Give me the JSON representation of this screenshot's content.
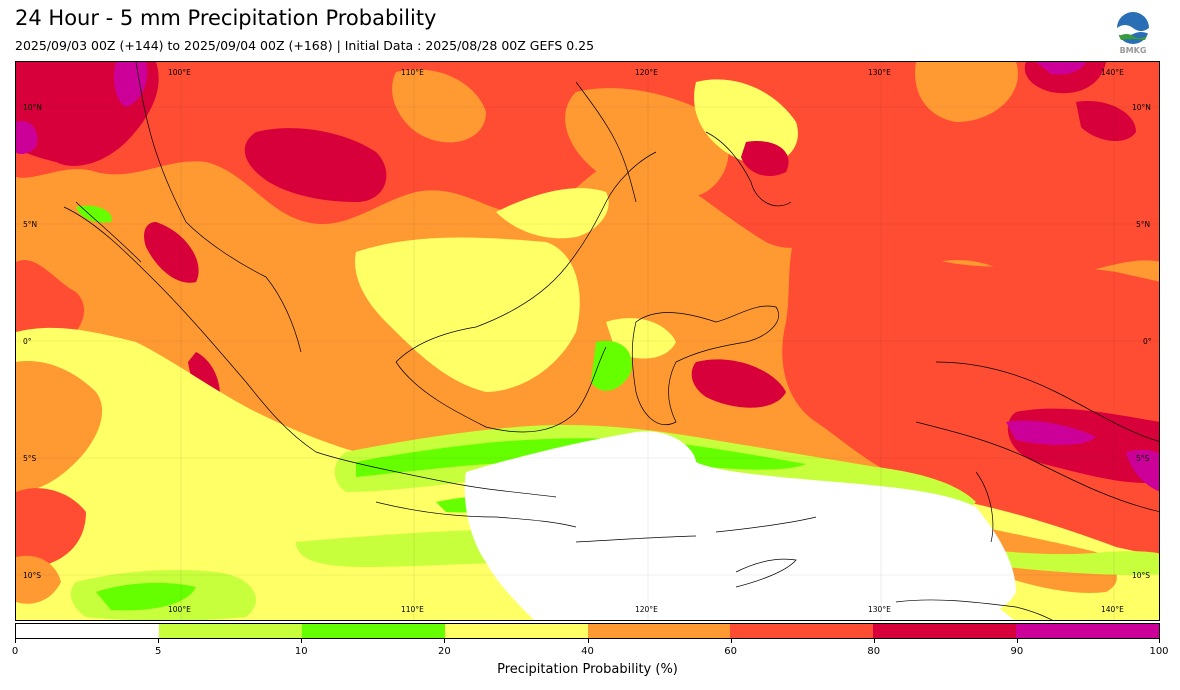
{
  "header": {
    "title": "24 Hour - 5 mm Precipitation Probability",
    "subtitle": "2025/09/03 00Z (+144) to 2025/09/04 00Z (+168) | Initial Data : 2025/08/28 00Z GEFS 0.25",
    "logo_text": "BMKG"
  },
  "map": {
    "lon_labels": [
      "100°E",
      "110°E",
      "120°E",
      "130°E",
      "140°E"
    ],
    "lat_labels": [
      "10°N",
      "5°N",
      "0°",
      "5°S",
      "10°S"
    ],
    "colors": {
      "c0_5": "#ffffff",
      "c5_10": "#c8ff3c",
      "c10_20": "#66ff00",
      "c20_40": "#ffff66",
      "c40_60": "#ff9a33",
      "c60_80": "#ff4d33",
      "c80_90": "#d8003a",
      "c90_100": "#cc0099"
    }
  },
  "colorbar": {
    "ticks": [
      "0",
      "5",
      "10",
      "20",
      "40",
      "60",
      "80",
      "90",
      "100"
    ],
    "label": "Precipitation Probability (%)",
    "segments": [
      "#ffffff",
      "#c8ff3c",
      "#66ff00",
      "#ffff66",
      "#ff9a33",
      "#ff4d33",
      "#d8003a",
      "#cc0099"
    ]
  }
}
